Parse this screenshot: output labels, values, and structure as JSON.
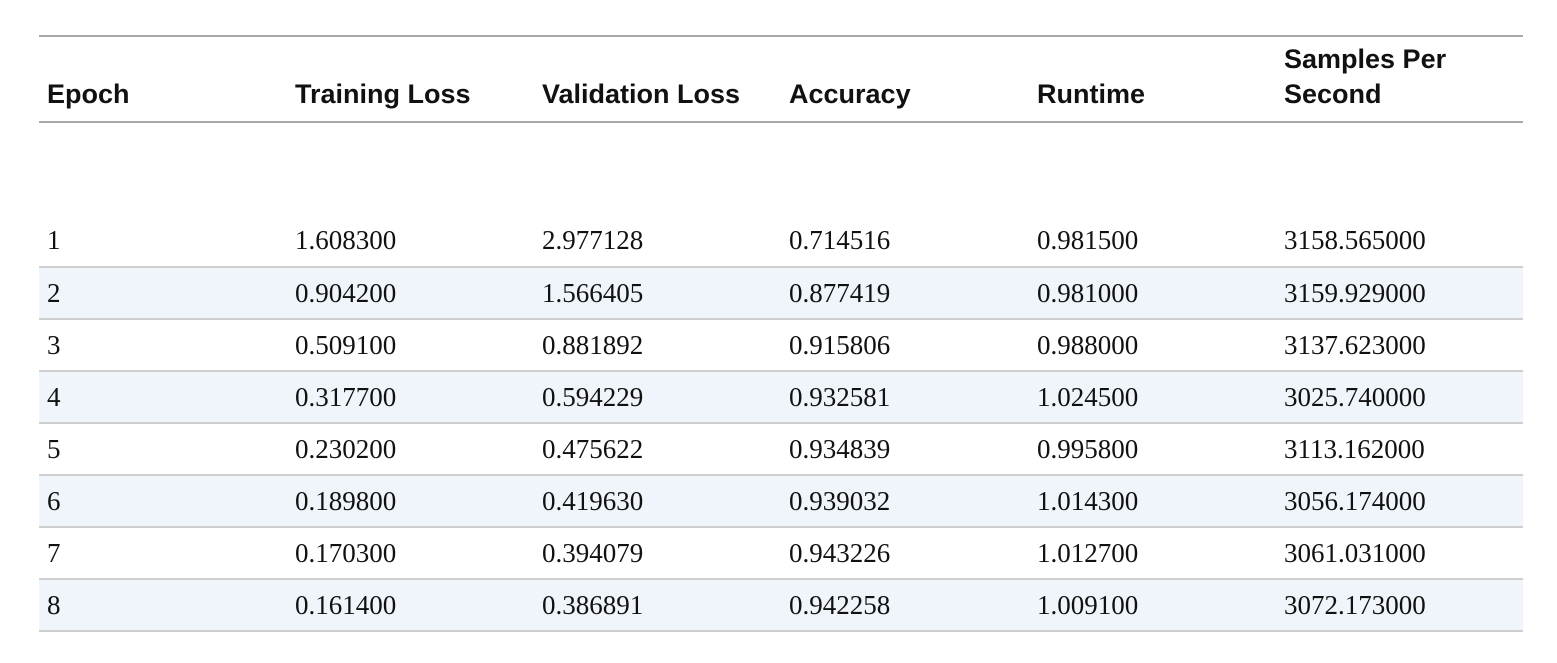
{
  "table": {
    "headers": [
      "Epoch",
      "Training Loss",
      "Validation Loss",
      "Accuracy",
      "Runtime",
      "Samples Per Second"
    ],
    "rows": [
      [
        "1",
        "1.608300",
        "2.977128",
        "0.714516",
        "0.981500",
        "3158.565000"
      ],
      [
        "2",
        "0.904200",
        "1.566405",
        "0.877419",
        "0.981000",
        "3159.929000"
      ],
      [
        "3",
        "0.509100",
        "0.881892",
        "0.915806",
        "0.988000",
        "3137.623000"
      ],
      [
        "4",
        "0.317700",
        "0.594229",
        "0.932581",
        "1.024500",
        "3025.740000"
      ],
      [
        "5",
        "0.230200",
        "0.475622",
        "0.934839",
        "0.995800",
        "3113.162000"
      ],
      [
        "6",
        "0.189800",
        "0.419630",
        "0.939032",
        "1.014300",
        "3056.174000"
      ],
      [
        "7",
        "0.170300",
        "0.394079",
        "0.943226",
        "1.012700",
        "3061.031000"
      ],
      [
        "8",
        "0.161400",
        "0.386891",
        "0.942258",
        "1.009100",
        "3072.173000"
      ]
    ]
  },
  "colors": {
    "stripe": "#f0f5fb",
    "rule": "#a8a8a8",
    "row_rule": "#cfcfcf",
    "text": "#111111"
  }
}
